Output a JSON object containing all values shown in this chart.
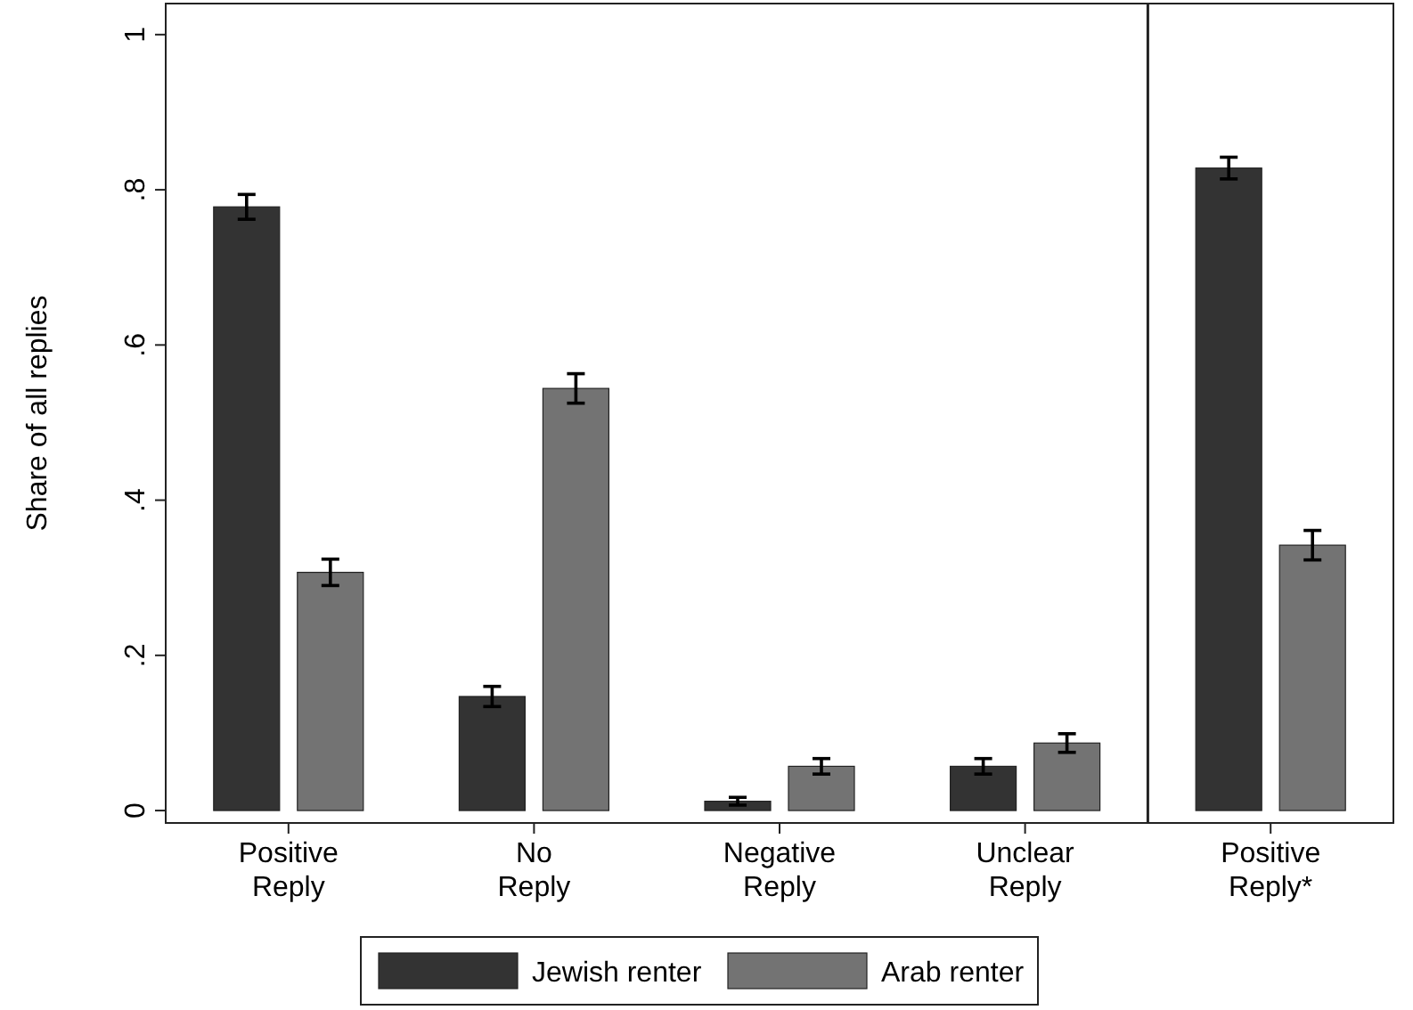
{
  "chart_data": {
    "type": "bar",
    "ylabel": "Share of all replies",
    "categories": [
      "Positive\nReply",
      "No\nReply",
      "Negative\nReply",
      "Unclear\nReply",
      "Positive\nReply*"
    ],
    "series": [
      {
        "name": "Jewish renter",
        "color": "#333333",
        "values": [
          0.778,
          0.147,
          0.012,
          0.057,
          0.828
        ],
        "errors": [
          0.016,
          0.013,
          0.005,
          0.01,
          0.014
        ]
      },
      {
        "name": "Arab renter",
        "color": "#737373",
        "values": [
          0.307,
          0.544,
          0.057,
          0.087,
          0.342
        ],
        "errors": [
          0.017,
          0.019,
          0.01,
          0.012,
          0.019
        ]
      }
    ],
    "ylim": [
      -0.016,
      1.04
    ],
    "yticks": [
      0,
      {
        "value": 0.2,
        "label": ".2"
      },
      {
        "value": 0.4,
        "label": ".4"
      },
      {
        "value": 0.6,
        "label": ".6"
      },
      {
        "value": 0.8,
        "label": ".8"
      },
      1
    ],
    "grid": false,
    "legend": "bottom"
  }
}
